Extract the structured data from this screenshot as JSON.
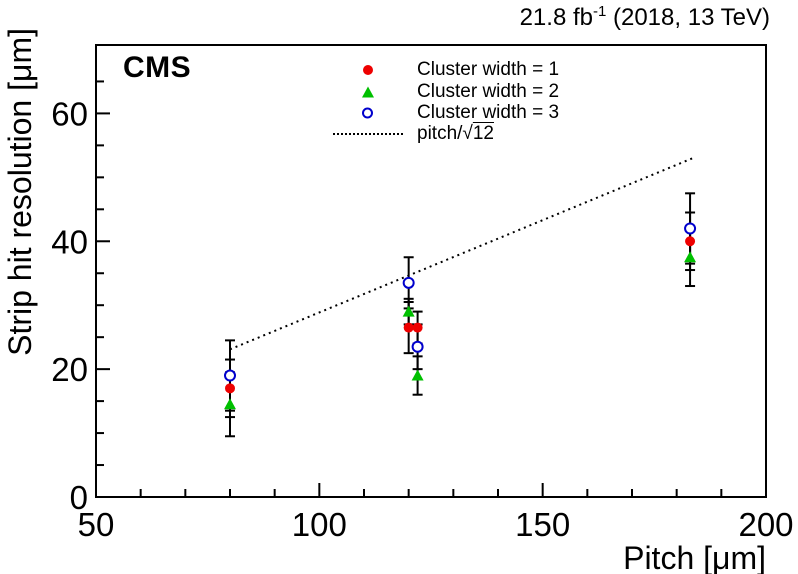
{
  "header": {
    "lumi": "21.8 fb",
    "lumi_exponent": "-1",
    "conditions": " (2018, 13 TeV)"
  },
  "experiment": {
    "label": "CMS"
  },
  "chart_data": {
    "type": "scatter",
    "title": "",
    "xlabel": "Pitch [μm]",
    "ylabel": "Strip hit resolution [μm]",
    "xlim": [
      50,
      200
    ],
    "ylim": [
      0,
      70.7
    ],
    "x_major_ticks": [
      50,
      100,
      150,
      200
    ],
    "x_minor_step": 10,
    "y_major_ticks": [
      0,
      20,
      40,
      60
    ],
    "y_minor_step": 5,
    "grid": false,
    "legend_position": "top-inside",
    "error_bar_color": "#000000",
    "series": [
      {
        "name": "Cluster width = 1",
        "marker": "filled-circle",
        "color": "#ee0000",
        "x": [
          80,
          120,
          122,
          183
        ],
        "y": [
          17,
          26.5,
          26.5,
          40
        ],
        "yerr": [
          4.5,
          4,
          2.5,
          4.5
        ]
      },
      {
        "name": "Cluster width = 2",
        "marker": "filled-triangle",
        "color": "#00c000",
        "x": [
          80,
          120,
          122,
          183
        ],
        "y": [
          14.5,
          29,
          19,
          37.5
        ],
        "yerr": [
          5,
          2,
          3,
          4.5
        ]
      },
      {
        "name": "Cluster width = 3",
        "marker": "open-circle",
        "color": "#0000cc",
        "x": [
          80,
          120,
          122,
          183
        ],
        "y": [
          19,
          33.5,
          23.5,
          42
        ],
        "yerr": [
          5.5,
          4,
          3.5,
          5.5
        ]
      }
    ],
    "reference_line": {
      "label_prefix": "pitch/",
      "radical_symbol": "√",
      "label_radicand": "12",
      "style": "dotted",
      "color": "#000000",
      "sqrt_divisor": 12,
      "formula": "y = x / sqrt(12)",
      "x_start": 80,
      "x_end": 184
    }
  }
}
